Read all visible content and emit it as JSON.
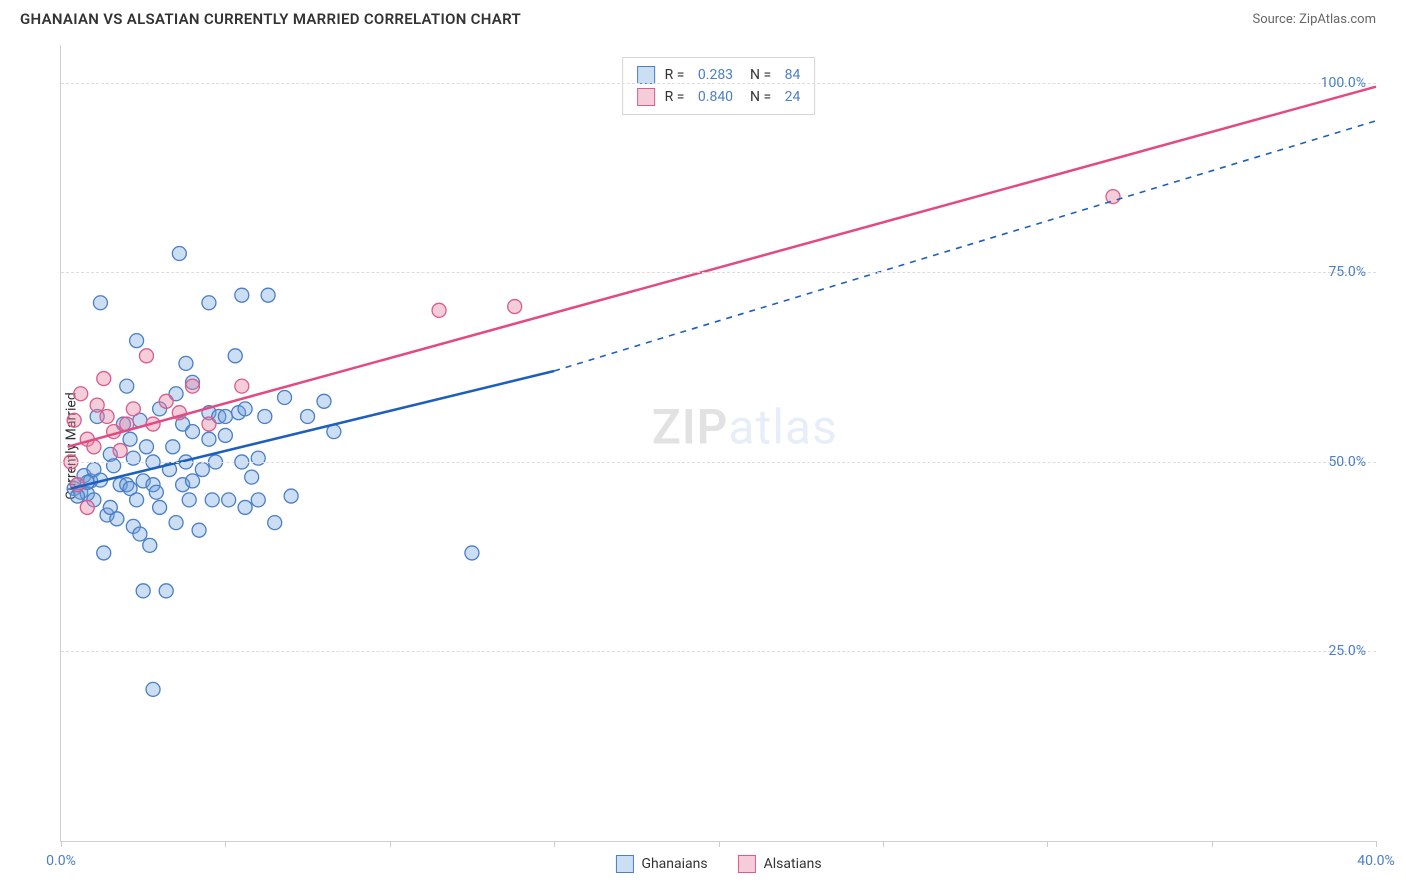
{
  "title": "GHANAIAN VS ALSATIAN CURRENTLY MARRIED CORRELATION CHART",
  "source": "Source: ZipAtlas.com",
  "ylabel": "Currently Married",
  "watermark": {
    "part1": "ZIP",
    "part2": "atlas"
  },
  "colors": {
    "blue_marker_fill": "rgba(110,160,220,0.35)",
    "blue_marker_stroke": "#4a7ec7",
    "pink_marker_fill": "rgba(230,130,160,0.4)",
    "pink_marker_stroke": "#d95c8f",
    "blue_line": "#1d5fbf",
    "pink_line": "#e34a82",
    "grid": "#dddddd",
    "axis": "#d0d0d0",
    "tick_text": "#4a7ec7"
  },
  "axes": {
    "xlim": [
      0,
      40
    ],
    "ylim": [
      0,
      105
    ],
    "y_ticks": [
      25,
      50,
      75,
      100
    ],
    "y_tick_labels": [
      "25.0%",
      "50.0%",
      "75.0%",
      "100.0%"
    ],
    "x_ticks": [
      0,
      5,
      10,
      15,
      20,
      25,
      30,
      35,
      40
    ],
    "x_tick_labels_shown": {
      "0": "0.0%",
      "40": "40.0%"
    }
  },
  "stats": [
    {
      "swatch": "blue",
      "r": "0.283",
      "n": "84"
    },
    {
      "swatch": "pink",
      "r": "0.840",
      "n": "24"
    }
  ],
  "legend": [
    {
      "swatch": "blue",
      "label": "Ghanaians"
    },
    {
      "swatch": "pink",
      "label": "Alsatians"
    }
  ],
  "series": {
    "ghanaians": {
      "color": "blue",
      "marker_radius": 7,
      "points": [
        [
          0.4,
          46.5
        ],
        [
          0.5,
          47.0
        ],
        [
          0.6,
          46.0
        ],
        [
          0.7,
          48.2
        ],
        [
          0.8,
          45.8
        ],
        [
          0.9,
          47.5
        ],
        [
          1.0,
          45.0
        ],
        [
          1.0,
          49.0
        ],
        [
          1.1,
          56.0
        ],
        [
          1.2,
          71.0
        ],
        [
          1.3,
          38.0
        ],
        [
          1.4,
          43.0
        ],
        [
          1.5,
          44.0
        ],
        [
          1.5,
          51.0
        ],
        [
          1.6,
          49.5
        ],
        [
          1.7,
          42.5
        ],
        [
          1.8,
          47.0
        ],
        [
          1.9,
          55.0
        ],
        [
          2.0,
          60.0
        ],
        [
          2.0,
          47.0
        ],
        [
          2.1,
          46.5
        ],
        [
          2.1,
          53.0
        ],
        [
          2.2,
          41.5
        ],
        [
          2.2,
          50.5
        ],
        [
          2.3,
          45.0
        ],
        [
          2.3,
          66.0
        ],
        [
          2.4,
          40.5
        ],
        [
          2.4,
          55.5
        ],
        [
          2.5,
          33.0
        ],
        [
          2.5,
          47.5
        ],
        [
          2.6,
          52.0
        ],
        [
          2.7,
          39.0
        ],
        [
          2.8,
          47.0
        ],
        [
          2.8,
          50.0
        ],
        [
          2.9,
          46.0
        ],
        [
          3.0,
          57.0
        ],
        [
          3.0,
          44.0
        ],
        [
          3.2,
          33.0
        ],
        [
          3.3,
          49.0
        ],
        [
          3.4,
          52.0
        ],
        [
          3.5,
          59.0
        ],
        [
          3.5,
          42.0
        ],
        [
          3.6,
          77.5
        ],
        [
          3.7,
          47.0
        ],
        [
          3.7,
          55.0
        ],
        [
          3.8,
          63.0
        ],
        [
          3.8,
          50.0
        ],
        [
          3.9,
          45.0
        ],
        [
          4.0,
          54.0
        ],
        [
          4.0,
          47.5
        ],
        [
          4.0,
          60.5
        ],
        [
          4.2,
          41.0
        ],
        [
          4.3,
          49.0
        ],
        [
          4.5,
          71.0
        ],
        [
          4.5,
          53.0
        ],
        [
          4.5,
          56.5
        ],
        [
          4.6,
          45.0
        ],
        [
          4.7,
          50.0
        ],
        [
          4.8,
          56.0
        ],
        [
          5.0,
          53.5
        ],
        [
          5.0,
          56.0
        ],
        [
          5.1,
          45.0
        ],
        [
          5.3,
          64.0
        ],
        [
          5.4,
          56.5
        ],
        [
          5.5,
          72.0
        ],
        [
          5.5,
          50.0
        ],
        [
          5.6,
          44.0
        ],
        [
          5.6,
          57.0
        ],
        [
          5.8,
          48.0
        ],
        [
          6.0,
          50.5
        ],
        [
          6.0,
          45.0
        ],
        [
          6.2,
          56.0
        ],
        [
          6.3,
          72.0
        ],
        [
          6.5,
          42.0
        ],
        [
          6.8,
          58.5
        ],
        [
          7.0,
          45.5
        ],
        [
          7.5,
          56.0
        ],
        [
          8.0,
          58.0
        ],
        [
          8.3,
          54.0
        ],
        [
          2.8,
          20.0
        ],
        [
          0.8,
          47.3
        ],
        [
          1.2,
          47.6
        ],
        [
          12.5,
          38.0
        ],
        [
          0.5,
          45.5
        ]
      ],
      "trend": {
        "x1": 0.3,
        "y1": 46.5,
        "x2": 15.0,
        "y2": 62.0,
        "x2_ext": 40.0,
        "y2_ext": 95.0
      }
    },
    "alsatians": {
      "color": "pink",
      "marker_radius": 7,
      "points": [
        [
          0.3,
          50.0
        ],
        [
          0.4,
          55.5
        ],
        [
          0.5,
          47.0
        ],
        [
          0.6,
          59.0
        ],
        [
          0.8,
          53.0
        ],
        [
          0.8,
          44.0
        ],
        [
          1.0,
          52.0
        ],
        [
          1.1,
          57.5
        ],
        [
          1.3,
          61.0
        ],
        [
          1.4,
          56.0
        ],
        [
          1.6,
          54.0
        ],
        [
          1.8,
          51.5
        ],
        [
          2.0,
          55.0
        ],
        [
          2.2,
          57.0
        ],
        [
          2.6,
          64.0
        ],
        [
          2.8,
          55.0
        ],
        [
          3.2,
          58.0
        ],
        [
          3.6,
          56.5
        ],
        [
          4.0,
          60.0
        ],
        [
          4.5,
          55.0
        ],
        [
          5.5,
          60.0
        ],
        [
          11.5,
          70.0
        ],
        [
          13.8,
          70.5
        ],
        [
          32.0,
          85.0
        ]
      ],
      "trend": {
        "x1": 0.2,
        "y1": 52.0,
        "x2": 40.0,
        "y2": 99.5
      }
    }
  }
}
